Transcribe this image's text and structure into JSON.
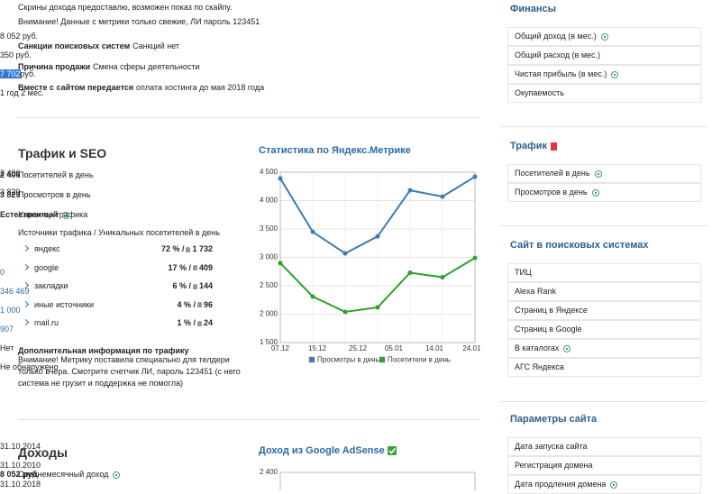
{
  "notes": [
    "Скрины дохода предоставлю, возможен показ по скайпу.",
    "Внимание! Данные с метрики только свежие, ЛИ пароль 123451"
  ],
  "facts": [
    {
      "label": "Санкции поисковых систем",
      "value": "Санкций нет"
    },
    {
      "label": "Причина продажи",
      "value": "Смена сферы деятельности"
    },
    {
      "label": "Вместе с сайтом передается",
      "value": "оплата хостинга до мая 2018 года"
    }
  ],
  "traffic": {
    "title": "Трафик и SEO",
    "rows": [
      {
        "label": "Посетителей в день",
        "value": "2 406"
      },
      {
        "label": "Просмотров в день",
        "value": "3 829"
      },
      {
        "label": "Характер трафика",
        "value": "Естественный",
        "help": true
      }
    ],
    "sources_title": "Источники трафика / Уникальных посетителей в день",
    "sources": [
      {
        "name": "яндекс",
        "share": "72 % /",
        "visitors": "1 732"
      },
      {
        "name": "google",
        "share": "17 % /",
        "visitors": "409"
      },
      {
        "name": "закладки",
        "share": "6 % /",
        "visitors": "144"
      },
      {
        "name": "иные источники",
        "share": "4 % /",
        "visitors": "96"
      },
      {
        "name": "mail.ru",
        "share": "1 % /",
        "visitors": "24"
      }
    ],
    "extra_title": "Дополнительная информация по трафику",
    "extra_text": "Внимание! Метрику поставила специально для телдери только вчера. Смотрите счетчик ЛИ, пароль 123451 (с него система не грузит и поддержка не помогла)"
  },
  "income": {
    "title": "Доходы",
    "rows": [
      {
        "label": "Среднемесячный доход",
        "value": "8 052 руб.",
        "help": true
      }
    ]
  },
  "chart_data": [
    {
      "type": "line",
      "title": "Статистика по Яндекс.Метрике",
      "categories": [
        null,
        null,
        null,
        null,
        null,
        null,
        null
      ],
      "xlim": [
        0,
        6
      ],
      "xticks": [
        {
          "value": 0,
          "label": "07.12"
        },
        {
          "value": 1.14,
          "label": "15.12"
        },
        {
          "value": 2.39,
          "label": "25.12"
        },
        {
          "value": 3.5,
          "label": "05.01"
        },
        {
          "value": 4.75,
          "label": "14.01"
        },
        {
          "value": 5.9,
          "label": "24.01"
        }
      ],
      "ylim": [
        1500,
        4500
      ],
      "yticks": [
        {
          "value": 1500,
          "label": "1 500"
        },
        {
          "value": 2000,
          "label": "2 000"
        },
        {
          "value": 2500,
          "label": "2 500"
        },
        {
          "value": 3000,
          "label": "3 000"
        },
        {
          "value": 3500,
          "label": "3 500"
        },
        {
          "value": 4000,
          "label": "4 000"
        },
        {
          "value": 4500,
          "label": "4 500"
        }
      ],
      "grid": true,
      "series": [
        {
          "name": "Просмотры в день",
          "color": "#3d7ab8",
          "values": [
            4390,
            3450,
            3070,
            3370,
            4180,
            4070,
            4420
          ]
        },
        {
          "name": "Посетители в день",
          "color": "#2ea02e",
          "values": [
            2900,
            2310,
            2040,
            2120,
            2730,
            2650,
            2990
          ]
        }
      ]
    },
    {
      "type": "line",
      "title": "Доход из Google AdSense",
      "yticks": [
        {
          "value": 2400,
          "label": "2 400"
        }
      ]
    }
  ],
  "sidebar": [
    {
      "title": "Финансы",
      "rows": [
        {
          "label": "Общий доход (в мес.)",
          "value": "8 052 руб.",
          "help": true
        },
        {
          "label": "Общий расход (в мес.)",
          "value": "350 руб."
        },
        {
          "label": "Чистая прибыль (в мес.)",
          "value": "7 702",
          "suffix": "руб.",
          "help": true,
          "selected": true
        },
        {
          "label": "Окупаемость",
          "value": "1 год 2 мес."
        }
      ]
    },
    {
      "title": "Трафик",
      "yandex": true,
      "rows": [
        {
          "label": "Посетителей в день",
          "value": "2 406",
          "help": true
        },
        {
          "label": "Просмотров в день",
          "value": "3 829",
          "help": true
        }
      ]
    },
    {
      "title": "Сайт в поисковых системах",
      "rows": [
        {
          "label": "ТИЦ",
          "value": "0",
          "link": true
        },
        {
          "label": "Alexa Rank",
          "value": "346 469",
          "link": true
        },
        {
          "label": "Страниц в Яндексе",
          "value": "1 000",
          "link": true
        },
        {
          "label": "Страниц в Google",
          "value": "907",
          "link": true
        },
        {
          "label": "В каталогах",
          "value": "Нет",
          "help": true
        },
        {
          "label": "АГС Яндекса",
          "value": "Не обнаружено"
        }
      ]
    },
    {
      "title": "Параметры сайта",
      "rows": [
        {
          "label": "Дата запуска сайта",
          "value": "31.10.2014"
        },
        {
          "label": "Регистрация домена",
          "value": "31.10.2010"
        },
        {
          "label": "Дата продления домена",
          "value": "31.10.2018",
          "help": true
        }
      ]
    }
  ]
}
